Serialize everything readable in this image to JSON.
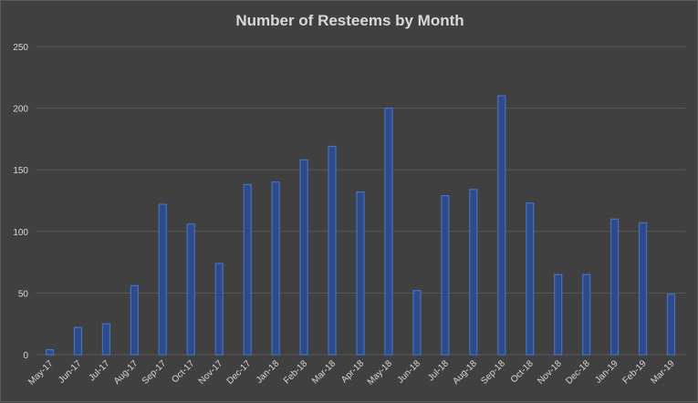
{
  "chart_data": {
    "type": "bar",
    "title": "Number of Resteems by Month",
    "xlabel": "",
    "ylabel": "",
    "ylim": [
      0,
      250
    ],
    "yticks": [
      0,
      50,
      100,
      150,
      200,
      250
    ],
    "grid": true,
    "legend": "none",
    "categories": [
      "May-17",
      "Jun-17",
      "Jul-17",
      "Aug-17",
      "Sep-17",
      "Oct-17",
      "Nov-17",
      "Dec-17",
      "Jan-18",
      "Feb-18",
      "Mar-18",
      "Apr-18",
      "May-18",
      "Jun-18",
      "Jul-18",
      "Aug-18",
      "Sep-18",
      "Oct-18",
      "Nov-18",
      "Dec-18",
      "Jan-19",
      "Feb-19",
      "Mar-19"
    ],
    "values": [
      4,
      22,
      25,
      56,
      122,
      106,
      74,
      138,
      140,
      158,
      169,
      132,
      200,
      52,
      129,
      134,
      210,
      123,
      65,
      65,
      110,
      107,
      49
    ],
    "colors": {
      "bar_fill": "#2e4a8a",
      "bar_stroke": "#4472c4",
      "background": "#404040",
      "gridline": "#595959",
      "text": "#d9d9d9"
    }
  }
}
